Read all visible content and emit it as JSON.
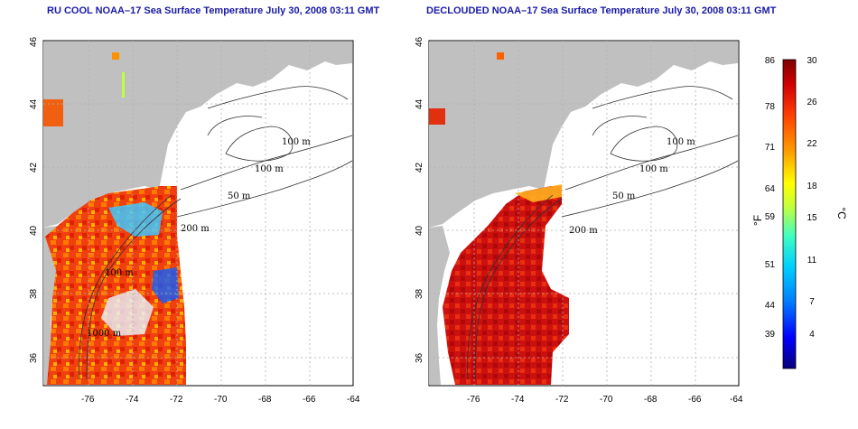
{
  "panels": [
    {
      "title": "RU COOL NOAA–17 Sea Surface Temperature July 30, 2008 03:11 GMT",
      "x_ticks": [
        "-76",
        "-74",
        "-72",
        "-70",
        "-68",
        "-66",
        "-64"
      ],
      "y_ticks": [
        "36",
        "38",
        "40",
        "42",
        "44",
        "46"
      ],
      "contour_labels": [
        "100 m",
        "100 m",
        "50 m",
        "200 m",
        "100 m",
        "1000 m"
      ]
    },
    {
      "title": "DECLOUDED NOAA–17 Sea Surface Temperature July 30, 2008 03:11 GMT",
      "x_ticks": [
        "-76",
        "-74",
        "-72",
        "-70",
        "-68",
        "-66",
        "-64"
      ],
      "y_ticks": [
        "36",
        "38",
        "40",
        "42",
        "44",
        "46"
      ],
      "contour_labels": [
        "100 m",
        "100 m",
        "50 m",
        "200 m"
      ]
    }
  ],
  "colorbar": {
    "fahrenheit_ticks": [
      "86",
      "78",
      "71",
      "64",
      "59",
      "51",
      "44",
      "39"
    ],
    "celsius_ticks": [
      "30",
      "26",
      "22",
      "18",
      "15",
      "11",
      "7",
      "4"
    ],
    "fahrenheit_unit": "°F",
    "celsius_unit": "°C",
    "colors": [
      "#08007a",
      "#0000ff",
      "#0080ff",
      "#00d0ff",
      "#40ffc0",
      "#c0ff40",
      "#ffff00",
      "#ffa000",
      "#ff4000",
      "#d00000",
      "#800000"
    ]
  },
  "colors": {
    "land": "#c0c0c0",
    "ocean_missing": "#ffffff",
    "grid": "#b0b0b0",
    "title": "#1a1aa6"
  }
}
